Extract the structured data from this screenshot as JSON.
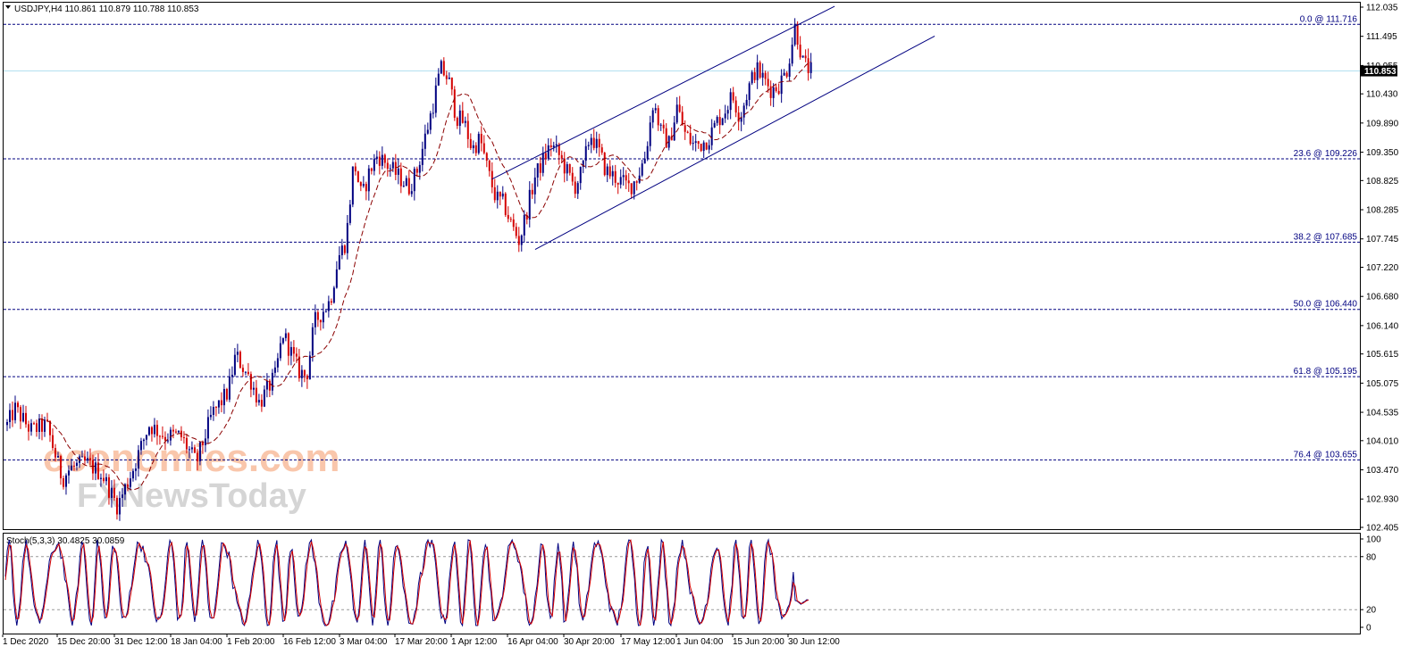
{
  "header": {
    "symbol_info": "USDJPY,H4  110.861 110.879 110.788 110.853",
    "dropdown_icon": "triangle-down-icon"
  },
  "watermark": {
    "line1": "economies.com",
    "line2": "FXNewsToday"
  },
  "current_price": "110.853",
  "colors": {
    "bull": "#000080",
    "bear": "#d40000",
    "ma": "#8b0000",
    "fib": "#000080",
    "channel": "#000080",
    "price_line": "#b3e0f0",
    "stoch_main": "#000080",
    "stoch_signal": "#d40000",
    "watermark1": "#f7b48f",
    "watermark2": "#c8c8c8"
  },
  "chart_data": [
    {
      "type": "candlestick",
      "symbol": "USDJPY",
      "timeframe": "H4",
      "ylim": [
        102.405,
        112.035
      ],
      "y_ticks": [
        "112.035",
        "111.495",
        "110.955",
        "110.430",
        "109.890",
        "109.350",
        "108.825",
        "108.285",
        "107.745",
        "107.220",
        "106.680",
        "106.140",
        "105.615",
        "105.075",
        "104.535",
        "104.010",
        "103.470",
        "102.930",
        "102.405"
      ],
      "x_ticks": [
        "1 Dec 2020",
        "15 Dec 20:00",
        "31 Dec 12:00",
        "18 Jan 04:00",
        "1 Feb 20:00",
        "16 Feb 12:00",
        "3 Mar 04:00",
        "17 Mar 20:00",
        "1 Apr 12:00",
        "16 Apr 04:00",
        "30 Apr 20:00",
        "17 May 12:00",
        "1 Jun 04:00",
        "15 Jun 20:00",
        "30 Jun 12:00"
      ],
      "price_path": [
        [
          0,
          104.3
        ],
        [
          0.01,
          104.6
        ],
        [
          0.03,
          104.2
        ],
        [
          0.05,
          104.3
        ],
        [
          0.07,
          103.3
        ],
        [
          0.08,
          103.5
        ],
        [
          0.1,
          103.6
        ],
        [
          0.12,
          103.4
        ],
        [
          0.14,
          102.8
        ],
        [
          0.16,
          103.5
        ],
        [
          0.18,
          104.3
        ],
        [
          0.2,
          104.1
        ],
        [
          0.22,
          104.1
        ],
        [
          0.24,
          103.6
        ],
        [
          0.26,
          104.5
        ],
        [
          0.28,
          104.9
        ],
        [
          0.29,
          105.6
        ],
        [
          0.31,
          105.1
        ],
        [
          0.32,
          104.7
        ],
        [
          0.34,
          105.2
        ],
        [
          0.35,
          106.0
        ],
        [
          0.37,
          105.3
        ],
        [
          0.38,
          105.2
        ],
        [
          0.39,
          106.2
        ],
        [
          0.41,
          106.6
        ],
        [
          0.42,
          107.4
        ],
        [
          0.43,
          107.7
        ],
        [
          0.44,
          109.2
        ],
        [
          0.45,
          108.5
        ],
        [
          0.46,
          109.0
        ],
        [
          0.47,
          109.3
        ],
        [
          0.49,
          109.0
        ],
        [
          0.51,
          108.7
        ],
        [
          0.52,
          109.0
        ],
        [
          0.53,
          109.6
        ],
        [
          0.54,
          110.2
        ],
        [
          0.55,
          110.9
        ],
        [
          0.56,
          110.7
        ],
        [
          0.57,
          110.0
        ],
        [
          0.58,
          109.9
        ],
        [
          0.59,
          109.4
        ],
        [
          0.6,
          109.6
        ],
        [
          0.61,
          109.0
        ],
        [
          0.62,
          108.5
        ],
        [
          0.63,
          108.4
        ],
        [
          0.64,
          108.0
        ],
        [
          0.65,
          107.7
        ],
        [
          0.66,
          108.3
        ],
        [
          0.67,
          108.9
        ],
        [
          0.68,
          109.2
        ],
        [
          0.69,
          109.5
        ],
        [
          0.7,
          109.3
        ],
        [
          0.71,
          109.0
        ],
        [
          0.72,
          108.7
        ],
        [
          0.73,
          109.0
        ],
        [
          0.74,
          109.7
        ],
        [
          0.75,
          109.4
        ],
        [
          0.76,
          109.0
        ],
        [
          0.77,
          108.9
        ],
        [
          0.78,
          108.8
        ],
        [
          0.79,
          108.7
        ],
        [
          0.8,
          108.9
        ],
        [
          0.81,
          109.3
        ],
        [
          0.82,
          110.3
        ],
        [
          0.83,
          109.7
        ],
        [
          0.84,
          109.5
        ],
        [
          0.85,
          110.2
        ],
        [
          0.86,
          109.7
        ],
        [
          0.87,
          109.5
        ],
        [
          0.88,
          109.5
        ],
        [
          0.89,
          109.6
        ],
        [
          0.9,
          109.9
        ],
        [
          0.91,
          110.1
        ],
        [
          0.92,
          110.4
        ],
        [
          0.93,
          110.0
        ],
        [
          0.94,
          110.5
        ],
        [
          0.95,
          110.9
        ],
        [
          0.96,
          110.7
        ],
        [
          0.97,
          110.5
        ],
        [
          0.98,
          110.6
        ],
        [
          0.99,
          110.9
        ],
        [
          1.0,
          111.7
        ],
        [
          1.01,
          111.0
        ],
        [
          1.02,
          110.85
        ]
      ],
      "fibonacci": [
        {
          "label": "0.0 @ 111.716",
          "price": 111.716
        },
        {
          "label": "23.6 @ 109.226",
          "price": 109.226
        },
        {
          "label": "38.2 @ 107.685",
          "price": 107.685
        },
        {
          "label": "50.0 @ 106.440",
          "price": 106.44
        },
        {
          "label": "61.8 @ 105.195",
          "price": 105.195
        },
        {
          "label": "76.4 @ 103.655",
          "price": 103.655
        }
      ],
      "channel": {
        "upper": [
          [
            0.615,
            108.85
          ],
          [
            1.05,
            112.05
          ]
        ],
        "lower": [
          [
            0.67,
            107.55
          ],
          [
            1.177,
            111.5
          ]
        ]
      },
      "current_price_level": 110.853
    },
    {
      "type": "line",
      "indicator": "Stoch(5,3,3)",
      "title": "Stoch(5,3,3) 30.4825 30.0859",
      "ylim": [
        0,
        100
      ],
      "y_ticks": [
        "100",
        "80",
        "20",
        "0"
      ],
      "levels": [
        80,
        20
      ],
      "last_values": [
        30.4825,
        30.0859
      ]
    }
  ]
}
